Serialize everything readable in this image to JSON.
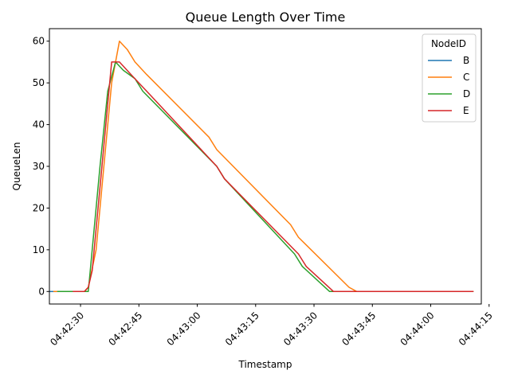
{
  "chart_data": {
    "type": "line",
    "title": "Queue Length Over Time",
    "xlabel": "Timestamp",
    "ylabel": "QueueLen",
    "x_axis_type": "time",
    "xlim": [
      "04:42:22",
      "04:44:13"
    ],
    "ylim": [
      -3,
      63
    ],
    "x_ticks": [
      "04:42:30",
      "04:42:45",
      "04:43:00",
      "04:43:15",
      "04:43:30",
      "04:43:45",
      "04:44:00",
      "04:44:15"
    ],
    "y_ticks": [
      0,
      10,
      20,
      30,
      40,
      50,
      60
    ],
    "legend": {
      "title": "NodeID",
      "placement": "top-right"
    },
    "grid": false,
    "series": [
      {
        "name": "B",
        "color": "#1f77b4",
        "x": [
          "04:42:22",
          "04:42:24"
        ],
        "y": [
          0,
          0
        ]
      },
      {
        "name": "C",
        "color": "#ff7f0e",
        "x": [
          "04:42:23",
          "04:42:31",
          "04:42:32",
          "04:42:34",
          "04:42:38",
          "04:42:40",
          "04:42:42",
          "04:42:44",
          "04:42:47",
          "04:43:03",
          "04:43:05",
          "04:43:24",
          "04:43:26",
          "04:43:39",
          "04:43:41",
          "04:44:11"
        ],
        "y": [
          0,
          0,
          1,
          10,
          50,
          60,
          58,
          55,
          52,
          37,
          34,
          16,
          13,
          1,
          0,
          0
        ]
      },
      {
        "name": "D",
        "color": "#2ca02c",
        "x": [
          "04:42:24",
          "04:42:31",
          "04:42:32",
          "04:42:33",
          "04:42:35",
          "04:42:37",
          "04:42:39",
          "04:42:41",
          "04:42:44",
          "04:42:46",
          "04:43:05",
          "04:43:07",
          "04:43:25",
          "04:43:27",
          "04:43:34",
          "04:43:39",
          "04:44:11"
        ],
        "y": [
          0,
          0,
          0,
          10,
          30,
          48,
          55,
          53,
          51,
          48,
          30,
          27,
          9,
          6,
          0,
          0,
          0
        ]
      },
      {
        "name": "E",
        "color": "#d62728",
        "x": [
          "04:42:28",
          "04:42:31",
          "04:42:32",
          "04:42:33",
          "04:42:35",
          "04:42:37",
          "04:42:38",
          "04:42:40",
          "04:42:43",
          "04:42:45",
          "04:42:47",
          "04:43:05",
          "04:43:07",
          "04:43:26",
          "04:43:28",
          "04:43:35",
          "04:43:37",
          "04:44:11"
        ],
        "y": [
          0,
          0,
          1,
          5,
          25,
          45,
          55,
          55,
          52,
          50,
          48,
          30,
          27,
          9,
          6,
          0,
          0,
          0
        ]
      }
    ]
  }
}
